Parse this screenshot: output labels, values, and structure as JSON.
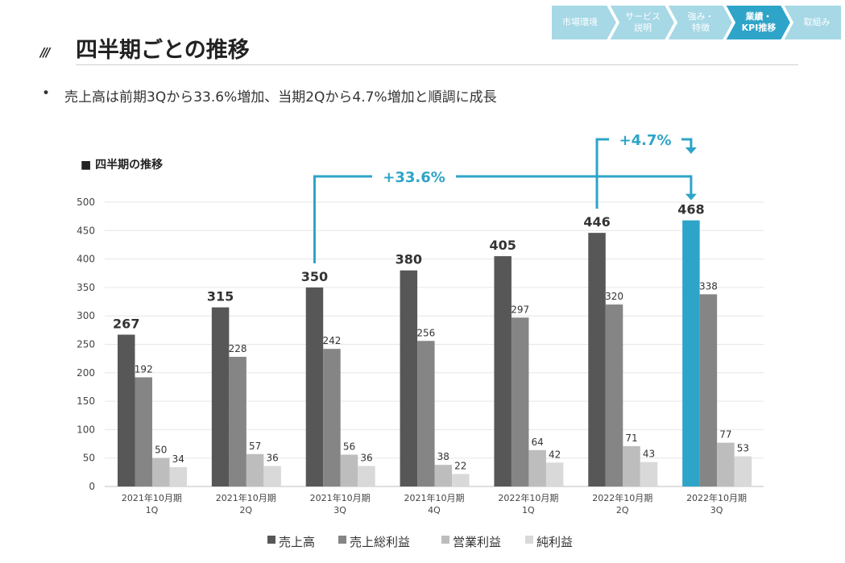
{
  "header": {
    "decoration": "///",
    "title": "四半期ごとの推移"
  },
  "nav": {
    "steps": [
      {
        "label": "市場環境",
        "active": false
      },
      {
        "label": "サービス\n説明",
        "active": false
      },
      {
        "label": "強み・\n特徴",
        "active": false
      },
      {
        "label": "業績・\nKPI推移",
        "active": true
      },
      {
        "label": "取組み",
        "active": false
      }
    ],
    "colors": {
      "inactive": "#a6d8e6",
      "active": "#2ea4c8"
    }
  },
  "summary": {
    "bullet": "•",
    "text": "売上高は前期3Qから33.6%増加、当期2Qから4.7%増加と順調に成長"
  },
  "chart_data": {
    "type": "bar",
    "title": "■ 四半期の推移",
    "categories": [
      [
        "2021年10月期",
        "1Q"
      ],
      [
        "2021年10月期",
        "2Q"
      ],
      [
        "2021年10月期",
        "3Q"
      ],
      [
        "2021年10月期",
        "4Q"
      ],
      [
        "2022年10月期",
        "1Q"
      ],
      [
        "2022年10月期",
        "2Q"
      ],
      [
        "2022年10月期",
        "3Q"
      ]
    ],
    "series": [
      {
        "name": "売上高",
        "color": "#575757",
        "values": [
          267,
          315,
          350,
          380,
          405,
          446,
          468
        ]
      },
      {
        "name": "売上総利益",
        "color": "#858585",
        "values": [
          192,
          228,
          242,
          256,
          297,
          320,
          338
        ]
      },
      {
        "name": "営業利益",
        "color": "#bdbdbd",
        "values": [
          50,
          57,
          56,
          38,
          64,
          71,
          77
        ]
      },
      {
        "name": "純利益",
        "color": "#d9d9d9",
        "values": [
          34,
          36,
          36,
          22,
          42,
          43,
          53
        ]
      }
    ],
    "highlight": {
      "series": 0,
      "category": 6,
      "color": "#2ea4c8"
    },
    "ylim": [
      0,
      500
    ],
    "yticks": [
      0,
      50,
      100,
      150,
      200,
      250,
      300,
      350,
      400,
      450,
      500
    ],
    "grid": true,
    "legend": "bottom",
    "annotations": [
      {
        "label": "+33.6%",
        "from_category": 2,
        "to_category": 6
      },
      {
        "label": "+4.7%",
        "from_category": 5,
        "to_category": 6
      }
    ],
    "accent": "#2ea4c8"
  }
}
